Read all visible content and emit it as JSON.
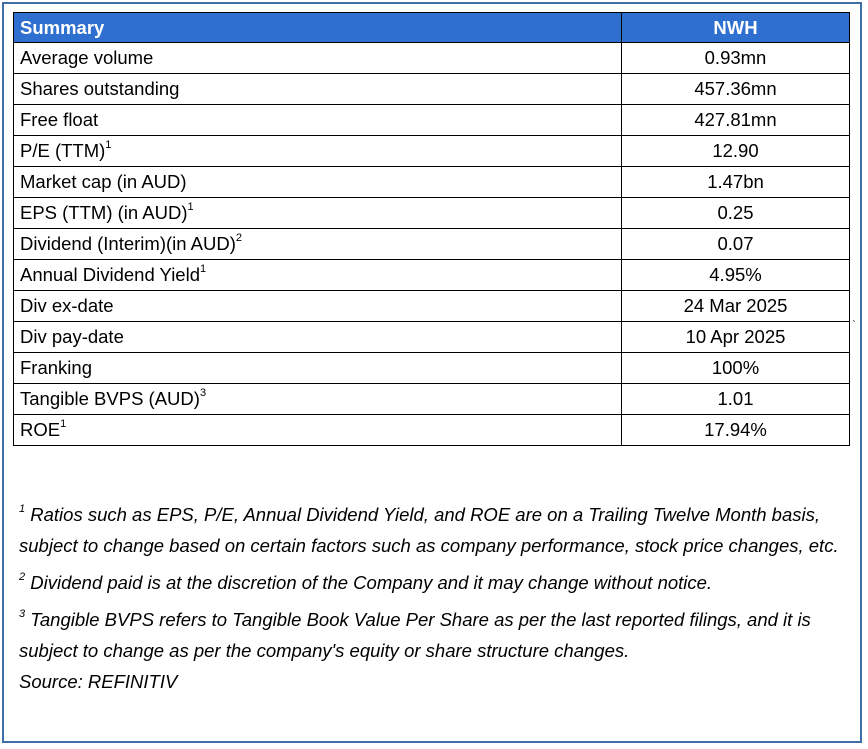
{
  "table": {
    "header": {
      "label": "Summary",
      "value": "NWH"
    },
    "rows": [
      {
        "label": "Average volume",
        "sup": "",
        "value": "0.93mn"
      },
      {
        "label": "Shares outstanding",
        "sup": "",
        "value": "457.36mn"
      },
      {
        "label": "Free float",
        "sup": "",
        "value": "427.81mn"
      },
      {
        "label": "P/E (TTM)",
        "sup": "1",
        "value": "12.90"
      },
      {
        "label": "Market cap (in AUD)",
        "sup": "",
        "value": "1.47bn"
      },
      {
        "label": "EPS (TTM) (in AUD)",
        "sup": "1",
        "value": "0.25"
      },
      {
        "label": "Dividend (Interim)(in AUD)",
        "sup": "2",
        "value": "0.07"
      },
      {
        "label": "Annual Dividend Yield",
        "sup": "1",
        "value": "4.95%"
      },
      {
        "label": "Div ex-date",
        "sup": "",
        "value": "24 Mar 2025"
      },
      {
        "label": "Div pay-date",
        "sup": "",
        "value": "10 Apr 2025"
      },
      {
        "label": "Franking",
        "sup": "",
        "value": "100%"
      },
      {
        "label": "Tangible BVPS (AUD)",
        "sup": "3",
        "value": "1.01"
      },
      {
        "label": "ROE",
        "sup": "1",
        "value": "17.94%"
      }
    ]
  },
  "notes": {
    "note1": {
      "sup": "1",
      "text": "  Ratios such as EPS, P/E,  Annual Dividend Yield, and ROE are on a Trailing Twelve Month basis, subject to change based on certain factors such as company performance, stock price changes, etc."
    },
    "note2": {
      "sup": "2",
      "text": "  Dividend paid is at the discretion of the Company and it may change without notice."
    },
    "note3": {
      "sup": "3",
      "text": " Tangible BVPS refers to Tangible Book Value Per Share as per the last reported filings, and it is subject to change as per the company's equity or share structure changes."
    },
    "source": "Source: REFINITIV"
  },
  "stray_mark": "`"
}
